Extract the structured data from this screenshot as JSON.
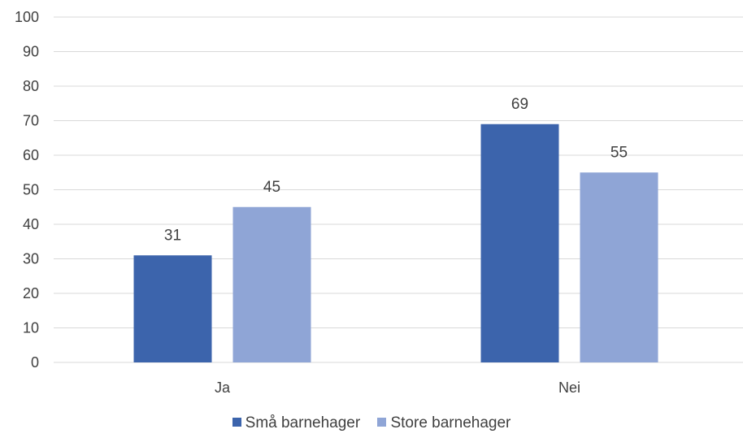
{
  "chart_data": {
    "type": "bar",
    "categories": [
      "Ja",
      "Nei"
    ],
    "series": [
      {
        "name": "Små barnehager",
        "values": [
          31,
          69
        ],
        "color": "#3C64AC"
      },
      {
        "name": "Store barnehager",
        "values": [
          45,
          55
        ],
        "color": "#8FA5D6"
      }
    ],
    "title": "",
    "xlabel": "",
    "ylabel": "",
    "ylim": [
      0,
      100
    ],
    "yticks": [
      0,
      10,
      20,
      30,
      40,
      50,
      60,
      70,
      80,
      90,
      100
    ],
    "grid": true,
    "gridColor": "#D9D9D9",
    "data_labels": true,
    "legend_position": "bottom"
  }
}
